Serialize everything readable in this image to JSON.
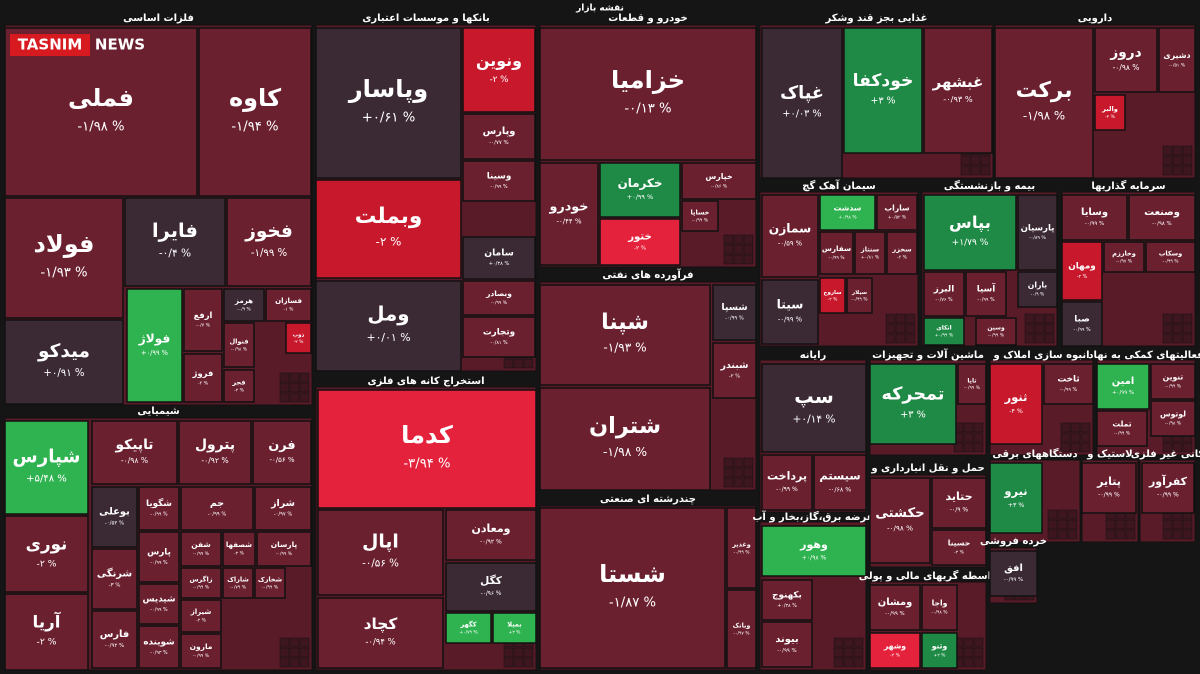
{
  "header": {
    "title": "نقشه بازار",
    "logo": "TASNIM",
    "logo_sub": "NEWS"
  },
  "sectors": [
    {
      "title": "فلزات اساسی",
      "tiles": [
        {
          "name": "فملی",
          "change": "-۱/۹۸ %"
        },
        {
          "name": "کاوه",
          "change": "-۱/۹۴ %"
        },
        {
          "name": "فولاد",
          "change": "-۱/۹۳ %"
        },
        {
          "name": "فایرا",
          "change": "-۰/۴ %"
        },
        {
          "name": "فخوز",
          "change": "-۱/۹۹ %"
        },
        {
          "name": "میدکو",
          "change": "+۰/۹۱ %"
        },
        {
          "name": "فولاژ",
          "change": "+۰/۹۹ %"
        },
        {
          "name": "ارفع",
          "change": "-۰/۷ %"
        },
        {
          "name": "فروژ",
          "change": "-۲ %"
        },
        {
          "name": "هرمز",
          "change": "-۰/۹ %"
        },
        {
          "name": "فسازان",
          "change": "-۱ %"
        },
        {
          "name": "فنوال",
          "change": "-۰/۹۸ %"
        },
        {
          "name": "ذوب",
          "change": "-۲ %"
        },
        {
          "name": "فجر",
          "change": "-۲ %"
        }
      ]
    },
    {
      "title": "شیمیایی",
      "tiles": [
        {
          "name": "شپارس",
          "change": "+۵/۴۸ %"
        },
        {
          "name": "نوری",
          "change": "-۲ %"
        },
        {
          "name": "آریا",
          "change": "-۲ %"
        },
        {
          "name": "تاپیکو",
          "change": "-۰/۹۸ %"
        },
        {
          "name": "پترول",
          "change": "-۰/۹۲ %"
        },
        {
          "name": "فرن",
          "change": "-۰/۵۶ %"
        },
        {
          "name": "بوعلی",
          "change": "-۰/۵۲ %"
        },
        {
          "name": "شگویا",
          "change": "-۰/۹۹ %"
        },
        {
          "name": "جم",
          "change": "-۰/۹۹ %"
        },
        {
          "name": "شراز",
          "change": "-۰/۹۷ %"
        },
        {
          "name": "شرنگی",
          "change": "-۳ %"
        },
        {
          "name": "فارس",
          "change": "-۰/۹۲ %"
        },
        {
          "name": "پارس",
          "change": "-۰/۹۹ %"
        },
        {
          "name": "شفن",
          "change": "-۰/۹۹ %"
        },
        {
          "name": "شصفها",
          "change": "-۲ %"
        },
        {
          "name": "پارسان",
          "change": "-۰/۹۹ %"
        },
        {
          "name": "شیدیس",
          "change": "-۰/۹۹ %"
        },
        {
          "name": "زاگرس",
          "change": "-۰/۹۹ %"
        },
        {
          "name": "شاراک",
          "change": "-۰/۷۹ %"
        },
        {
          "name": "شخارک",
          "change": "-۰/۹۹ %"
        },
        {
          "name": "شوینده",
          "change": "-۰/۹۳ %"
        },
        {
          "name": "شیراز",
          "change": "-۲ %"
        },
        {
          "name": "مارون",
          "change": "-۰/۹۹ %"
        }
      ]
    },
    {
      "title": "بانکها و موسسات اعتباری",
      "tiles": [
        {
          "name": "وپاسار",
          "change": "+۰/۶۱ %"
        },
        {
          "name": "ونوین",
          "change": "-۲ %"
        },
        {
          "name": "وبملت",
          "change": "-۲ %"
        },
        {
          "name": "ومل",
          "change": "+۰/۰۱ %"
        },
        {
          "name": "وپارس",
          "change": "-۰/۷۷ %"
        },
        {
          "name": "وسینا",
          "change": "-۰/۹۹ %"
        },
        {
          "name": "سامان",
          "change": "+۰/۳۸ %"
        },
        {
          "name": "وبصادر",
          "change": "-۰/۹۹ %"
        },
        {
          "name": "وتجارت",
          "change": "-۰/۸۱ %"
        }
      ]
    },
    {
      "title": "استخراج کانه های فلزی",
      "tiles": [
        {
          "name": "کدما",
          "change": "-۳/۹۴ %"
        },
        {
          "name": "اپال",
          "change": "-۰/۵۶ %"
        },
        {
          "name": "کچاد",
          "change": "-۰/۹۴ %"
        },
        {
          "name": "ومعادن",
          "change": "-۰/۹۲ %"
        },
        {
          "name": "کگل",
          "change": "-۰/۹۶ %"
        },
        {
          "name": "کگهر",
          "change": "+۰/۷۹ %"
        },
        {
          "name": "بمیلا",
          "change": "+۲ %"
        }
      ]
    },
    {
      "title": "خودرو و قطعات",
      "tiles": [
        {
          "name": "خزامیا",
          "change": "-۰/۱۳ %"
        },
        {
          "name": "خودرو",
          "change": "-۰/۴۴ %"
        },
        {
          "name": "خکرمان",
          "change": "+۰/۹۹ %"
        },
        {
          "name": "ختور",
          "change": "-۲ %"
        },
        {
          "name": "خپارس",
          "change": "-۰/۸۶ %"
        },
        {
          "name": "خساپا",
          "change": "-۰/۹۹ %"
        }
      ]
    },
    {
      "title": "فرآورده های نفتی",
      "tiles": [
        {
          "name": "شپنا",
          "change": "-۱/۹۳ %"
        },
        {
          "name": "شتران",
          "change": "-۱/۹۸ %"
        },
        {
          "name": "شسپا",
          "change": "-۰/۹۹ %"
        },
        {
          "name": "شبندر",
          "change": "-۲ %"
        }
      ]
    },
    {
      "title": "چندرشته ای صنعتی",
      "tiles": [
        {
          "name": "شستا",
          "change": "-۱/۸۷ %"
        },
        {
          "name": "وغدیر",
          "change": "-۰/۹۹ %"
        },
        {
          "name": "وبانک",
          "change": "-۰/۹۷ %"
        }
      ]
    },
    {
      "title": "غذایی بجز قند وشکر",
      "tiles": [
        {
          "name": "غپاک",
          "change": "+۰/۰۳ %"
        },
        {
          "name": "خودکفا",
          "change": "+۳ %"
        },
        {
          "name": "غبشهر",
          "change": "-۰/۹۳ %"
        }
      ]
    },
    {
      "title": "دارویی",
      "tiles": [
        {
          "name": "برکت",
          "change": "-۱/۹۸ %"
        },
        {
          "name": "دروز",
          "change": "-۰/۹۸ %"
        },
        {
          "name": "دشیری",
          "change": "-۰/۵۱ %"
        },
        {
          "name": "والبر",
          "change": "-۲ %"
        }
      ]
    },
    {
      "title": "سیمان آهک گچ",
      "tiles": [
        {
          "name": "سمازن",
          "change": "-۰/۵۹ %"
        },
        {
          "name": "سیتا",
          "change": "-۰/۹۹ %"
        },
        {
          "name": "سدشت",
          "change": "+۰/۹۸ %"
        },
        {
          "name": "ساراب",
          "change": "+۰/۵۳ %"
        },
        {
          "name": "سفارس",
          "change": "-۰/۹۹ %"
        },
        {
          "name": "سنتاز",
          "change": "+۰/۸۱ %"
        },
        {
          "name": "سخزر",
          "change": "-۳ %"
        },
        {
          "name": "ساروج",
          "change": "-۲ %"
        },
        {
          "name": "سیلار",
          "change": "-۰/۹۹ %"
        }
      ]
    },
    {
      "title": "بیمه و بازنشستگی",
      "tiles": [
        {
          "name": "بپاس",
          "change": "+۱/۷۹ %"
        },
        {
          "name": "پارسیان",
          "change": "-۰/۸۹ %"
        },
        {
          "name": "البرز",
          "change": "-۰/۷۶ %"
        },
        {
          "name": "آسیا",
          "change": "-۰/۹۹ %"
        },
        {
          "name": "اتکای",
          "change": "+۰/۹۹ %"
        },
        {
          "name": "وسین",
          "change": "-۰/۹۹ %"
        },
        {
          "name": "باران",
          "change": "-۰/۹ %"
        }
      ]
    },
    {
      "title": "سرمایه گذاریها",
      "tiles": [
        {
          "name": "وسایا",
          "change": "-۰/۹۹ %"
        },
        {
          "name": "وصنعت",
          "change": "-۰/۹۸ %"
        },
        {
          "name": "ومهان",
          "change": "-۲ %"
        },
        {
          "name": "وخارزم",
          "change": "-۰/۹۷ %"
        },
        {
          "name": "وسکاب",
          "change": "-۰/۹۹ %"
        },
        {
          "name": "صبا",
          "change": "-۰/۹۹ %"
        }
      ]
    },
    {
      "title": "رایانه",
      "tiles": [
        {
          "name": "سپ",
          "change": "+۰/۱۴ %"
        },
        {
          "name": "پرداخت",
          "change": "-۰/۹۹ %"
        },
        {
          "name": "سیستم",
          "change": "-۰/۶۸ %"
        }
      ]
    },
    {
      "title": "ماشین آلات و تجهیزات",
      "tiles": [
        {
          "name": "تمحرکه",
          "change": "+۳ %"
        },
        {
          "name": "تاپا",
          "change": "-۰/۹۹ %"
        }
      ]
    },
    {
      "title": "انبوه سازی املاک و",
      "tiles": [
        {
          "name": "ثنور",
          "change": "-۴ %"
        },
        {
          "name": "ثاخت",
          "change": "-۰/۹۹ %"
        }
      ]
    },
    {
      "title": "فعالیتهای کمکی به نهاد",
      "tiles": [
        {
          "name": "امین",
          "change": "+۰/۹۹ %"
        },
        {
          "name": "تنوین",
          "change": "-۰/۹۹ %"
        },
        {
          "name": "لوتوس",
          "change": "-۰/۹۸ %"
        },
        {
          "name": "تملت",
          "change": "-۰/۹۹ %"
        }
      ]
    },
    {
      "title": "عرضه برق،گاز،بخار و آب",
      "tiles": [
        {
          "name": "وهور",
          "change": "+۰/۹۸ %"
        },
        {
          "name": "بکهنوج",
          "change": "+۰/۳۸ %"
        },
        {
          "name": "بیوند",
          "change": "-۰/۹۹ %"
        }
      ]
    },
    {
      "title": "حمل و نقل انبارداری و",
      "tiles": [
        {
          "name": "حکشتی",
          "change": "-۰/۹۸ %"
        },
        {
          "name": "حتاید",
          "change": "-۰/۹ %"
        },
        {
          "name": "حسینا",
          "change": "-۲ %"
        }
      ]
    },
    {
      "title": "واسطه گریهای مالی و پولی",
      "tiles": [
        {
          "name": "ومشان",
          "change": "-۰/۹۹ %"
        },
        {
          "name": "واجا",
          "change": "-۰/۹۸ %"
        },
        {
          "name": "وشهر",
          "change": "-۲ %"
        },
        {
          "name": "وثنو",
          "change": "+۲ %"
        }
      ]
    },
    {
      "title": "دستگاههای برقی",
      "tiles": [
        {
          "name": "نیرو",
          "change": "+۳ %"
        }
      ]
    },
    {
      "title": "خرده فروشی",
      "tiles": [
        {
          "name": "افق",
          "change": "-۰/۹۹ %"
        }
      ]
    },
    {
      "title": "لاستیک و",
      "tiles": [
        {
          "name": "پتایر",
          "change": "-۰/۹۹ %"
        }
      ]
    },
    {
      "title": "کانی غیر فلزی",
      "tiles": [
        {
          "name": "کفرآور",
          "change": "-۰/۹۹ %"
        }
      ]
    }
  ]
}
